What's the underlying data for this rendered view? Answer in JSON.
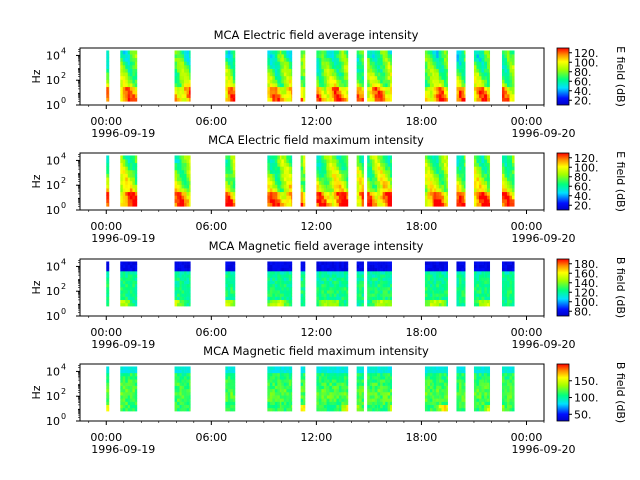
{
  "chart_data": [
    {
      "type": "heatmap",
      "title": "MCA  Electric field average intensity",
      "ylabel": "Hz",
      "yticks": [
        {
          "base": "10",
          "exp": "0"
        },
        {
          "base": "10",
          "exp": "2"
        },
        {
          "base": "10",
          "exp": "4"
        }
      ],
      "ylim_log10": [
        0,
        4.6
      ],
      "colorbar_label": "E field (dB)",
      "colorbar_ticks": [
        "20.",
        "40.",
        "60.",
        "80.",
        "100.",
        "120."
      ],
      "colorbar_range": [
        10,
        130
      ],
      "data_ymin_log10": 0.3
    },
    {
      "type": "heatmap",
      "title": "MCA  Electric field maximum intensity",
      "ylabel": "Hz",
      "yticks": [
        {
          "base": "10",
          "exp": "0"
        },
        {
          "base": "10",
          "exp": "2"
        },
        {
          "base": "10",
          "exp": "4"
        }
      ],
      "ylim_log10": [
        0,
        4.6
      ],
      "colorbar_label": "E field (dB)",
      "colorbar_ticks": [
        "20.",
        "40.",
        "60.",
        "80.",
        "100.",
        "120."
      ],
      "colorbar_range": [
        10,
        130
      ],
      "data_ymin_log10": 0.3
    },
    {
      "type": "heatmap",
      "title": "MCA  Magnetic field average intensity",
      "ylabel": "Hz",
      "yticks": [
        {
          "base": "10",
          "exp": "0"
        },
        {
          "base": "10",
          "exp": "2"
        },
        {
          "base": "10",
          "exp": "4"
        }
      ],
      "ylim_log10": [
        0,
        4.6
      ],
      "colorbar_label": "B field (dB)",
      "colorbar_ticks": [
        "80.",
        "100.",
        "120.",
        "140.",
        "160.",
        "180."
      ],
      "colorbar_range": [
        70,
        190
      ],
      "data_ymin_log10": 0.8
    },
    {
      "type": "heatmap",
      "title": "MCA  Magnetic field maximum intensity",
      "ylabel": "Hz",
      "yticks": [
        {
          "base": "10",
          "exp": "0"
        },
        {
          "base": "10",
          "exp": "2"
        },
        {
          "base": "10",
          "exp": "4"
        }
      ],
      "ylim_log10": [
        0,
        4.6
      ],
      "colorbar_label": "B field (dB)",
      "colorbar_ticks": [
        "50.",
        "100.",
        "150."
      ],
      "colorbar_range": [
        30,
        200
      ],
      "data_ymin_log10": 0.8
    }
  ],
  "x_axis": {
    "range_hours": [
      -1.5,
      25
    ],
    "ticks": [
      {
        "hour": 0,
        "time": "00:00",
        "date": "1996-09-19"
      },
      {
        "hour": 6,
        "time": "06:00",
        "date": ""
      },
      {
        "hour": 12,
        "time": "12:00",
        "date": ""
      },
      {
        "hour": 18,
        "time": "18:00",
        "date": ""
      },
      {
        "hour": 24,
        "time": "00:00",
        "date": "1996-09-20"
      }
    ]
  },
  "data_intervals_hours": [
    [
      0.0,
      0.15
    ],
    [
      0.8,
      1.35
    ],
    [
      1.35,
      1.75
    ],
    [
      3.9,
      4.3
    ],
    [
      4.3,
      4.8
    ],
    [
      6.8,
      7.35
    ],
    [
      9.2,
      10.0
    ],
    [
      10.0,
      10.6
    ],
    [
      11.1,
      11.35
    ],
    [
      12.0,
      12.6
    ],
    [
      12.6,
      13.0
    ],
    [
      13.0,
      13.8
    ],
    [
      14.3,
      14.7
    ],
    [
      14.9,
      15.5
    ],
    [
      15.5,
      16.3
    ],
    [
      18.2,
      18.7
    ],
    [
      18.7,
      19.0
    ],
    [
      19.0,
      19.5
    ],
    [
      20.0,
      20.5
    ],
    [
      21.0,
      21.6
    ],
    [
      21.6,
      21.9
    ],
    [
      22.6,
      23.3
    ]
  ]
}
